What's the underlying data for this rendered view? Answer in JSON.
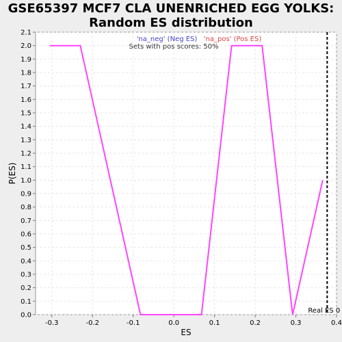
{
  "chart_data": {
    "type": "line",
    "title_line1": "GSE65397 MCF7 CLA UNENRICHED EGG YOLKS:",
    "title_line2": "Random ES distribution",
    "xlabel": "ES",
    "ylabel": "P(ES)",
    "xlim": [
      -0.34,
      0.4
    ],
    "ylim": [
      0.0,
      2.1
    ],
    "xticks": [
      -0.3,
      -0.2,
      -0.1,
      0.0,
      0.1,
      0.2,
      0.3,
      0.4
    ],
    "xtick_labels": [
      "-0.3",
      "-0.2",
      "-0.1",
      "0.0",
      "0.1",
      "0.2",
      "0.3",
      "0.4"
    ],
    "yticks": [
      0.0,
      0.1,
      0.2,
      0.3,
      0.4,
      0.5,
      0.6,
      0.7,
      0.8,
      0.9,
      1.0,
      1.1,
      1.2,
      1.3,
      1.4,
      1.5,
      1.6,
      1.7,
      1.8,
      1.9,
      2.0,
      2.1
    ],
    "ytick_labels": [
      "0.0",
      "0.1",
      "0.2",
      "0.3",
      "0.4",
      "0.5",
      "0.6",
      "0.7",
      "0.8",
      "0.9",
      "1.0",
      "1.1",
      "1.2",
      "1.3",
      "1.4",
      "1.5",
      "1.6",
      "1.7",
      "1.8",
      "1.9",
      "2.0",
      "2.1"
    ],
    "grid": true,
    "series": [
      {
        "color": "#ff44ff",
        "x": [
          -0.305,
          -0.23,
          -0.082,
          0.068,
          0.142,
          0.217,
          0.292,
          0.366
        ],
        "y": [
          2.0,
          2.0,
          0.0,
          0.0,
          2.0,
          2.0,
          0.0,
          1.0
        ]
      }
    ],
    "legend": {
      "neg_label": "'na_neg' (Neg ES)",
      "neg_color": "#4444cc",
      "pos_label": "'na_pos' (Pos ES)",
      "pos_color": "#dd4444",
      "subtitle": "Sets with pos scores: 50%"
    },
    "real_es": {
      "x": 0.377,
      "label": "Real ES 0"
    }
  }
}
